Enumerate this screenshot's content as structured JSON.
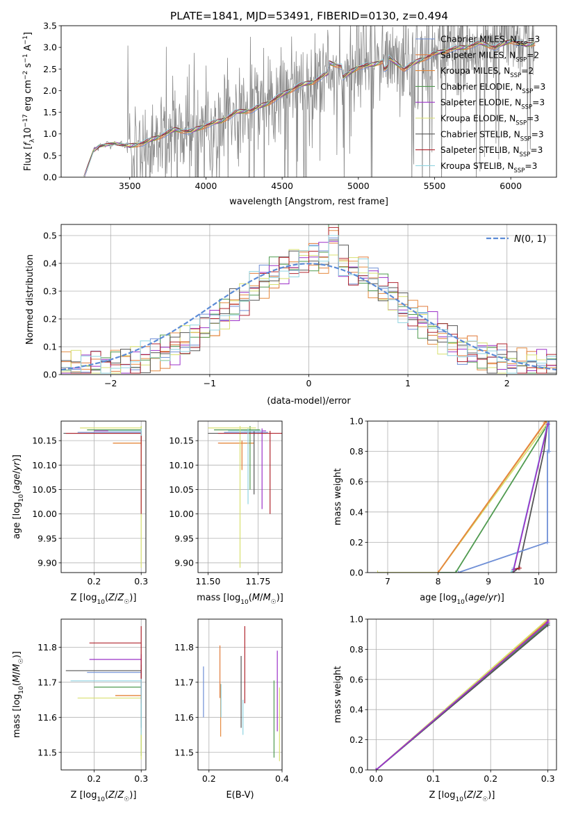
{
  "figure": {
    "title": "PLATE=1841, MJD=53491, FIBERID=0130, z=0.494"
  },
  "colors": {
    "Chabrier MILES": "#6f8fd6",
    "Salpeter MILES": "#e07a3a",
    "Kroupa MILES": "#e58a3e",
    "Chabrier ELODIE": "#4f9a4f",
    "Salpeter ELODIE": "#9b30c8",
    "Kroupa ELODIE": "#d8e070",
    "Chabrier STELIB": "#555555",
    "Salpeter STELIB": "#b0242e",
    "Kroupa STELIB": "#8fd3e0",
    "normal": "#5b8bd6",
    "data": "#888888"
  },
  "chart_data": [
    {
      "panel": "spectrum",
      "type": "line",
      "xlabel": "wavelength [Angstrom, rest frame]",
      "ylabel": "Flux [f_λ 10^-17 erg cm^-2 s^-1 A^-1]",
      "xlim": [
        3050,
        6300
      ],
      "ylim": [
        0,
        3.5
      ],
      "xticks": [
        3500,
        4000,
        4500,
        5000,
        5500,
        6000
      ],
      "yticks": [
        0.0,
        0.5,
        1.0,
        1.5,
        2.0,
        2.5,
        3.0,
        3.5
      ],
      "grid": false,
      "legend_position": "top-right",
      "legend": [
        {
          "label": "Chabrier MILES, N_SSP=3",
          "base": "Chabrier MILES, N",
          "sub": "SSP",
          "tail": "=3"
        },
        {
          "label": "Salpeter MILES, N_SSP=2",
          "base": "Salpeter MILES, N",
          "sub": "SSP",
          "tail": "=2"
        },
        {
          "label": "Kroupa MILES, N_SSP=2",
          "base": "Kroupa MILES, N",
          "sub": "SSP",
          "tail": "=2"
        },
        {
          "label": "Chabrier ELODIE, N_SSP=3",
          "base": "Chabrier ELODIE, N",
          "sub": "SSP",
          "tail": "=3"
        },
        {
          "label": "Salpeter ELODIE, N_SSP=3",
          "base": "Salpeter ELODIE, N",
          "sub": "SSP",
          "tail": "=3"
        },
        {
          "label": "Kroupa ELODIE, N_SSP=3",
          "base": "Kroupa ELODIE, N",
          "sub": "SSP",
          "tail": "=3"
        },
        {
          "label": "Chabrier STELIB, N_SSP=3",
          "base": "Chabrier STELIB, N",
          "sub": "SSP",
          "tail": "=3"
        },
        {
          "label": "Salpeter STELIB, N_SSP=3",
          "base": "Salpeter STELIB, N",
          "sub": "SSP",
          "tail": "=3"
        },
        {
          "label": "Kroupa STELIB, N_SSP=3",
          "base": "Kroupa STELIB, N",
          "sub": "SSP",
          "tail": "=3"
        }
      ],
      "continuum": {
        "x": [
          3200,
          3260,
          3300,
          3400,
          3500,
          3600,
          3700,
          3800,
          3900,
          4000,
          4100,
          4200,
          4300,
          4400,
          4500,
          4600,
          4700,
          4800,
          4900,
          5000,
          5100,
          5200,
          5300,
          5400,
          5500,
          5600,
          5700,
          5800,
          5900,
          6000,
          6100,
          6160
        ],
        "y": [
          0,
          0.6,
          0.72,
          0.78,
          0.72,
          0.8,
          0.95,
          1.1,
          1.05,
          1.2,
          1.3,
          1.5,
          1.55,
          1.7,
          1.9,
          2.1,
          2.2,
          2.4,
          2.3,
          2.55,
          2.6,
          2.75,
          2.5,
          2.7,
          2.85,
          2.95,
          3.0,
          3.1,
          3.0,
          3.15,
          3.05,
          3.1
        ]
      },
      "noise_start": 3480
    },
    {
      "panel": "residuals",
      "type": "histogram",
      "xlabel": "(data-model)/error",
      "ylabel": "Normed distribution",
      "xlim": [
        -2.5,
        2.5
      ],
      "ylim": [
        0,
        0.54
      ],
      "xticks": [
        -2,
        -1,
        0,
        1,
        2
      ],
      "yticks": [
        0.0,
        0.1,
        0.2,
        0.3,
        0.4,
        0.5
      ],
      "grid": true,
      "bin_width": 0.1,
      "legend_position": "top-right",
      "legend_label": "N(0, 1)",
      "normal_curve": {
        "mean": 0,
        "sigma": 1
      }
    },
    {
      "panel": "age-Z",
      "type": "scatter",
      "xlabel": "Z [log10(Z/Z☉)]",
      "ylabel": "age  [log10(age/yr)]",
      "xlim": [
        0.13,
        0.31
      ],
      "ylim": [
        9.88,
        10.19
      ],
      "xticks": [
        0.2,
        0.3
      ],
      "yticks": [
        9.9,
        9.95,
        10.0,
        10.05,
        10.1,
        10.15
      ],
      "grid": true,
      "points": [
        {
          "model": "Chabrier MILES",
          "x": 0.3,
          "y": 10.167,
          "xerr": [
            0.165,
            0.3
          ],
          "yerr": [
            10.16,
            10.17
          ]
        },
        {
          "model": "Salpeter MILES",
          "x": 0.3,
          "y": 10.145,
          "xerr": [
            0.24,
            0.3
          ],
          "yerr": [
            10.14,
            10.15
          ]
        },
        {
          "model": "Kroupa MILES",
          "x": 0.3,
          "y": 10.145,
          "xerr": [
            0.24,
            0.3
          ],
          "yerr": [
            10.14,
            10.15
          ]
        },
        {
          "model": "Chabrier ELODIE",
          "x": 0.3,
          "y": 10.172,
          "xerr": [
            0.185,
            0.3
          ],
          "yerr": [
            10.16,
            10.18
          ]
        },
        {
          "model": "Salpeter ELODIE",
          "x": 0.3,
          "y": 10.17,
          "xerr": [
            0.2,
            0.3
          ],
          "yerr": [
            10.16,
            10.175
          ]
        },
        {
          "model": "Kroupa ELODIE",
          "x": 0.3,
          "y": 10.176,
          "xerr": [
            0.17,
            0.3
          ],
          "yerr": [
            9.89,
            10.18
          ]
        },
        {
          "model": "Chabrier STELIB",
          "x": 0.3,
          "y": 10.165,
          "xerr": [
            0.135,
            0.3
          ],
          "yerr": [
            10.15,
            10.17
          ]
        },
        {
          "model": "Salpeter STELIB",
          "x": 0.3,
          "y": 10.165,
          "xerr": [
            0.14,
            0.3
          ],
          "yerr": [
            10.0,
            10.17
          ]
        },
        {
          "model": "Kroupa STELIB",
          "x": 0.3,
          "y": 10.17,
          "xerr": [
            0.23,
            0.3
          ],
          "yerr": [
            10.16,
            10.175
          ]
        }
      ]
    },
    {
      "panel": "age-mass",
      "type": "scatter",
      "xlabel": "mass [log10(M/M☉)]",
      "ylabel": "",
      "xlim": [
        11.45,
        11.87
      ],
      "ylim": [
        9.88,
        10.19
      ],
      "xticks": [
        11.5,
        11.75
      ],
      "yticks": [
        9.9,
        9.95,
        10.0,
        10.05,
        10.1,
        10.15
      ],
      "grid": true,
      "points": [
        {
          "model": "Chabrier MILES",
          "x": 11.73,
          "y": 10.167,
          "xerr": [
            11.58,
            11.8
          ],
          "yerr": [
            10.16,
            10.17
          ]
        },
        {
          "model": "Salpeter MILES",
          "x": 11.67,
          "y": 10.145,
          "xerr": [
            11.55,
            11.73
          ],
          "yerr": [
            10.09,
            10.15
          ]
        },
        {
          "model": "Kroupa MILES",
          "x": 11.67,
          "y": 10.145,
          "xerr": [
            11.56,
            11.73
          ],
          "yerr": [
            10.09,
            10.15
          ]
        },
        {
          "model": "Chabrier ELODIE",
          "x": 11.71,
          "y": 10.172,
          "xerr": [
            11.53,
            11.76
          ],
          "yerr": [
            10.05,
            10.18
          ]
        },
        {
          "model": "Salpeter ELODIE",
          "x": 11.77,
          "y": 10.17,
          "xerr": [
            11.68,
            11.79
          ],
          "yerr": [
            10.01,
            10.175
          ]
        },
        {
          "model": "Kroupa ELODIE",
          "x": 11.66,
          "y": 10.176,
          "xerr": [
            11.5,
            11.74
          ],
          "yerr": [
            9.89,
            10.18
          ]
        },
        {
          "model": "Chabrier STELIB",
          "x": 11.73,
          "y": 10.165,
          "xerr": [
            11.5,
            11.79
          ],
          "yerr": [
            10.04,
            10.17
          ]
        },
        {
          "model": "Salpeter STELIB",
          "x": 11.81,
          "y": 10.165,
          "xerr": [
            11.55,
            11.87
          ],
          "yerr": [
            10.0,
            10.17
          ]
        },
        {
          "model": "Kroupa STELIB",
          "x": 11.7,
          "y": 10.17,
          "xerr": [
            11.6,
            11.77
          ],
          "yerr": [
            10.02,
            10.175
          ]
        }
      ]
    },
    {
      "panel": "mass-weight-age",
      "type": "line",
      "xlabel": "age  [log10(age/yr)]",
      "ylabel": "mass weight",
      "xlim": [
        6.6,
        10.35
      ],
      "ylim": [
        0,
        1.0
      ],
      "xticks": [
        7,
        8,
        9,
        10
      ],
      "yticks": [
        0.0,
        0.2,
        0.4,
        0.6,
        0.8,
        1.0
      ],
      "grid": true,
      "series": [
        {
          "model": "Kroupa ELODIE",
          "x": [
            6.8,
            8.0,
            10.18,
            10.18
          ],
          "y": [
            0,
            0.0,
            0.99,
            1.0
          ]
        },
        {
          "model": "Chabrier ELODIE",
          "x": [
            8.0,
            8.35,
            10.18,
            10.18
          ],
          "y": [
            0,
            0.0,
            0.98,
            1.0
          ]
        },
        {
          "model": "Salpeter MILES",
          "x": [
            8.0,
            10.15,
            10.15
          ],
          "y": [
            0,
            1.0,
            1.0
          ]
        },
        {
          "model": "Kroupa MILES",
          "x": [
            8.0,
            10.12,
            10.12
          ],
          "y": [
            0,
            0.99,
            1.0
          ]
        },
        {
          "model": "Chabrier STELIB",
          "x": [
            9.48,
            9.6,
            10.1,
            10.18
          ],
          "y": [
            0,
            0.03,
            0.8,
            1.0
          ]
        },
        {
          "model": "Salpeter STELIB",
          "x": [
            9.5,
            9.62
          ],
          "y": [
            0.02,
            0.03
          ]
        },
        {
          "model": "Chabrier MILES",
          "x": [
            8.4,
            10.17,
            10.17,
            10.2,
            10.2
          ],
          "y": [
            0,
            0.2,
            0.8,
            0.8,
            1.0
          ]
        },
        {
          "model": "Kroupa STELIB",
          "x": [
            9.45,
            9.5,
            10.15,
            10.18
          ],
          "y": [
            0,
            0.03,
            0.95,
            1.0
          ]
        },
        {
          "model": "Salpeter ELODIE",
          "x": [
            9.5,
            10.18
          ],
          "y": [
            0.02,
            0.98
          ]
        }
      ]
    },
    {
      "panel": "mass-Z",
      "type": "scatter",
      "xlabel": "Z [log10(Z/Z☉)]",
      "ylabel": "mass [log10(M/M☉)]",
      "xlim": [
        0.13,
        0.31
      ],
      "ylim": [
        11.45,
        11.88
      ],
      "xticks": [
        0.2,
        0.3
      ],
      "yticks": [
        11.5,
        11.6,
        11.7,
        11.8
      ],
      "grid": true,
      "points": [
        {
          "model": "Chabrier MILES",
          "x": 0.3,
          "y": 11.728,
          "xerr": [
            0.185,
            0.3
          ],
          "yerr": [
            11.7,
            11.74
          ]
        },
        {
          "model": "Salpeter MILES",
          "x": 0.3,
          "y": 11.662,
          "xerr": [
            0.245,
            0.3
          ],
          "yerr": [
            11.65,
            11.67
          ]
        },
        {
          "model": "Kroupa MILES",
          "x": 0.3,
          "y": 11.662,
          "xerr": [
            0.245,
            0.3
          ],
          "yerr": [
            11.65,
            11.67
          ]
        },
        {
          "model": "Chabrier ELODIE",
          "x": 0.3,
          "y": 11.686,
          "xerr": [
            0.2,
            0.3
          ],
          "yerr": [
            11.49,
            11.7
          ]
        },
        {
          "model": "Salpeter ELODIE",
          "x": 0.3,
          "y": 11.765,
          "xerr": [
            0.19,
            0.3
          ],
          "yerr": [
            11.56,
            11.78
          ]
        },
        {
          "model": "Kroupa ELODIE",
          "x": 0.3,
          "y": 11.655,
          "xerr": [
            0.165,
            0.3
          ],
          "yerr": [
            11.48,
            11.67
          ]
        },
        {
          "model": "Chabrier STELIB",
          "x": 0.3,
          "y": 11.733,
          "xerr": [
            0.14,
            0.3
          ],
          "yerr": [
            11.57,
            11.75
          ]
        },
        {
          "model": "Salpeter STELIB",
          "x": 0.3,
          "y": 11.812,
          "xerr": [
            0.19,
            0.3
          ],
          "yerr": [
            11.64,
            11.86
          ]
        },
        {
          "model": "Kroupa STELIB",
          "x": 0.3,
          "y": 11.704,
          "xerr": [
            0.15,
            0.3
          ],
          "yerr": [
            11.55,
            11.71
          ]
        }
      ]
    },
    {
      "panel": "mass-EBV",
      "type": "scatter",
      "xlabel": "E(B-V)",
      "ylabel": "",
      "xlim": [
        0.17,
        0.4
      ],
      "ylim": [
        11.45,
        11.88
      ],
      "xticks": [
        0.2,
        0.4
      ],
      "yticks": [
        11.5,
        11.6,
        11.7,
        11.8
      ],
      "grid": true,
      "points": [
        {
          "model": "Chabrier MILES",
          "x": 0.185,
          "y": 11.67,
          "yerr": [
            11.6,
            11.745
          ]
        },
        {
          "model": "Kroupa MILES",
          "x": 0.232,
          "y": 11.62,
          "yerr": [
            11.545,
            11.695
          ]
        },
        {
          "model": "Salpeter MILES",
          "x": 0.23,
          "y": 11.73,
          "yerr": [
            11.655,
            11.805
          ]
        },
        {
          "model": "Kroupa STELIB",
          "x": 0.233,
          "y": 11.65,
          "yerr": [
            11.6,
            11.695
          ]
        },
        {
          "model": "Chabrier STELIB",
          "x": 0.288,
          "y": 11.68,
          "yerr": [
            11.57,
            11.775
          ]
        },
        {
          "model": "Kroupa STELIB",
          "x": 0.293,
          "y": 11.6,
          "yerr": [
            11.55,
            11.65
          ]
        },
        {
          "model": "Salpeter STELIB",
          "x": 0.298,
          "y": 11.75,
          "yerr": [
            11.64,
            11.86
          ]
        },
        {
          "model": "Chabrier ELODIE",
          "x": 0.378,
          "y": 11.6,
          "yerr": [
            11.485,
            11.705
          ]
        },
        {
          "model": "Salpeter ELODIE",
          "x": 0.387,
          "y": 11.68,
          "yerr": [
            11.56,
            11.79
          ]
        },
        {
          "model": "Kroupa ELODIE",
          "x": 0.393,
          "y": 11.58,
          "yerr": [
            11.475,
            11.685
          ]
        }
      ]
    },
    {
      "panel": "mass-weight-Z",
      "type": "line",
      "xlabel": "Z [log10(Z/Z☉)]",
      "ylabel": "mass weight",
      "xlim": [
        -0.015,
        0.315
      ],
      "ylim": [
        0,
        1.0
      ],
      "xticks": [
        0.0,
        0.1,
        0.2,
        0.3
      ],
      "yticks": [
        0.0,
        0.2,
        0.4,
        0.6,
        0.8,
        1.0
      ],
      "grid": true,
      "series": [
        {
          "model": "Chabrier MILES",
          "x": [
            0.0,
            0.3,
            0.3
          ],
          "y": [
            0,
            0.96,
            1.0
          ]
        },
        {
          "model": "Salpeter MILES",
          "x": [
            0.0,
            0.3,
            0.3
          ],
          "y": [
            0,
            0.99,
            1.0
          ]
        },
        {
          "model": "Kroupa ELODIE",
          "x": [
            0.0,
            0.3,
            0.3
          ],
          "y": [
            0,
            1.0,
            1.0
          ]
        },
        {
          "model": "Chabrier ELODIE",
          "x": [
            0.0,
            0.3,
            0.3
          ],
          "y": [
            0,
            0.97,
            1.0
          ]
        },
        {
          "model": "Chabrier STELIB",
          "x": [
            0.0,
            0.3,
            0.3
          ],
          "y": [
            0,
            0.96,
            1.0
          ]
        },
        {
          "model": "Kroupa STELIB",
          "x": [
            0.0,
            0.3,
            0.3
          ],
          "y": [
            0,
            0.98,
            1.0
          ]
        },
        {
          "model": "Salpeter ELODIE",
          "x": [
            0.0,
            0.3,
            0.3
          ],
          "y": [
            0,
            0.98,
            1.0
          ]
        }
      ]
    }
  ]
}
